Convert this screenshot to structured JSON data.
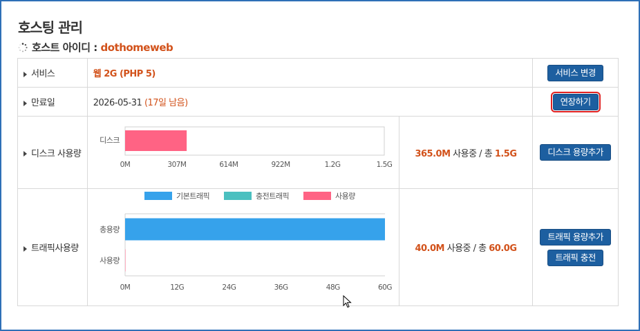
{
  "page": {
    "title": "호스팅 관리",
    "host_label": "호스트 아이디 :",
    "host_id": "dothomeweb"
  },
  "service": {
    "label": "서비스",
    "value": "웹 2G (PHP 5)",
    "button": "서비스 변경"
  },
  "expiry": {
    "label": "만료일",
    "date": "2026-05-31",
    "remaining": "(17일 남음)",
    "button": "연장하기"
  },
  "disk": {
    "label": "디스크 사용량",
    "used": "365.0M",
    "used_text": "사용중 / 총",
    "total": "1.5G",
    "button": "디스크 용량추가"
  },
  "traffic": {
    "label": "트래픽사용량",
    "used": "40.0M",
    "used_text": "사용중 / 총",
    "total": "60.0G",
    "button_add": "트래픽 용량추가",
    "button_charge": "트래픽 충전"
  },
  "chart_data": [
    {
      "type": "bar",
      "orientation": "horizontal",
      "categories": [
        "디스크"
      ],
      "values": [
        365
      ],
      "unit": "M",
      "xlim": [
        0,
        1536
      ],
      "xticks": [
        0,
        307,
        614,
        922,
        1229,
        1536
      ],
      "xtick_labels": [
        "0M",
        "307M",
        "614M",
        "922M",
        "1.2G",
        "1.5G"
      ],
      "colors": [
        "#ff6384"
      ]
    },
    {
      "type": "bar",
      "orientation": "horizontal",
      "categories": [
        "총용량",
        "사용량"
      ],
      "series": [
        {
          "name": "기본트래픽",
          "color": "#36a2eb",
          "values": [
            60,
            0
          ]
        },
        {
          "name": "충전트래픽",
          "color": "#4bc0c0",
          "values": [
            0,
            0
          ]
        },
        {
          "name": "사용량",
          "color": "#ff6384",
          "values": [
            0,
            0.04
          ]
        }
      ],
      "unit": "G",
      "xlim": [
        0,
        60
      ],
      "xticks": [
        0,
        12,
        24,
        36,
        48,
        60
      ],
      "xtick_labels": [
        "0M",
        "12G",
        "24G",
        "36G",
        "48G",
        "60G"
      ],
      "legend": "top"
    }
  ]
}
